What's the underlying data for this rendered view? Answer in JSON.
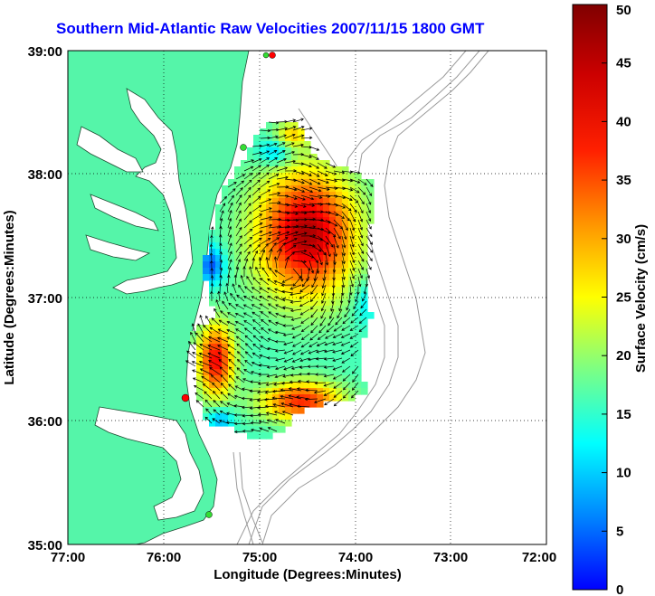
{
  "title": "Southern Mid-Atlantic Raw Velocities 2007/11/15 1800 GMT",
  "map": {
    "xlabel": "Longitude (Degrees:Minutes)",
    "ylabel": "Latitude (Degrees:Minutes)",
    "x_ticks": [
      "77:00",
      "76:00",
      "75:00",
      "74:00",
      "73:00",
      "72:00"
    ],
    "y_ticks": [
      "39:00",
      "38:00",
      "37:00",
      "36:00",
      "35:00"
    ],
    "lon_range_west": [
      77,
      72
    ],
    "lat_range": [
      35,
      39
    ],
    "grid": "dotted",
    "land_color": "#55f5a9",
    "water_color": "#ffffff",
    "bathymetry_color": "#9a9a9a",
    "station_colors": [
      "#ff0000",
      "#33dd33"
    ]
  },
  "colorbar": {
    "label": "Surface Velocity (cm/s)",
    "min": 0,
    "max": 50,
    "ticks": [
      "0",
      "5",
      "10",
      "15",
      "20",
      "25",
      "30",
      "35",
      "40",
      "45",
      "50"
    ],
    "colormap": "jet"
  },
  "chart_data": {
    "type": "heatmap",
    "title": "Southern Mid-Atlantic Raw Velocities 2007/11/15 1800 GMT",
    "xlabel": "Longitude (Degrees:Minutes)",
    "ylabel": "Latitude (Degrees:Minutes)",
    "xlim_lon_w": [
      77,
      72
    ],
    "ylim_lat": [
      35,
      39
    ],
    "color_range": [
      0,
      50
    ],
    "color_label": "Surface Velocity (cm/s)",
    "grid": true
  }
}
